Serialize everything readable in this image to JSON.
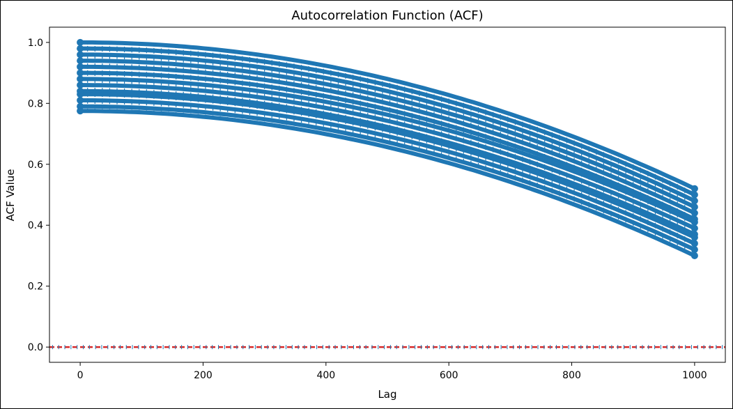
{
  "chart_data": {
    "type": "scatter",
    "title": "Autocorrelation Function (ACF)",
    "xlabel": "Lag",
    "ylabel": "ACF Value",
    "xlim": [
      -50,
      1050
    ],
    "ylim": [
      -0.05,
      1.05
    ],
    "xticks": [
      0,
      200,
      400,
      600,
      800,
      1000
    ],
    "yticks": [
      0.0,
      0.2,
      0.4,
      0.6,
      0.8,
      1.0
    ],
    "xtick_labels": [
      "0",
      "200",
      "400",
      "600",
      "800",
      "1000"
    ],
    "ytick_labels": [
      "0.0",
      "0.2",
      "0.4",
      "0.6",
      "0.8",
      "1.0"
    ],
    "grid": false,
    "lag_range": [
      0,
      1000
    ],
    "series": [
      {
        "start": 1.0,
        "end": 0.52
      },
      {
        "start": 0.98,
        "end": 0.5
      },
      {
        "start": 0.96,
        "end": 0.48
      },
      {
        "start": 0.94,
        "end": 0.46
      },
      {
        "start": 0.92,
        "end": 0.44
      },
      {
        "start": 0.9,
        "end": 0.42
      },
      {
        "start": 0.88,
        "end": 0.41
      },
      {
        "start": 0.86,
        "end": 0.39
      },
      {
        "start": 0.84,
        "end": 0.37
      },
      {
        "start": 0.83,
        "end": 0.36
      },
      {
        "start": 0.81,
        "end": 0.34
      },
      {
        "start": 0.79,
        "end": 0.32
      },
      {
        "start": 0.775,
        "end": 0.3
      }
    ],
    "series_color": "#1f77b4",
    "reference_line": {
      "y": 0.0,
      "color": "#d62728",
      "style": "dashed"
    }
  }
}
